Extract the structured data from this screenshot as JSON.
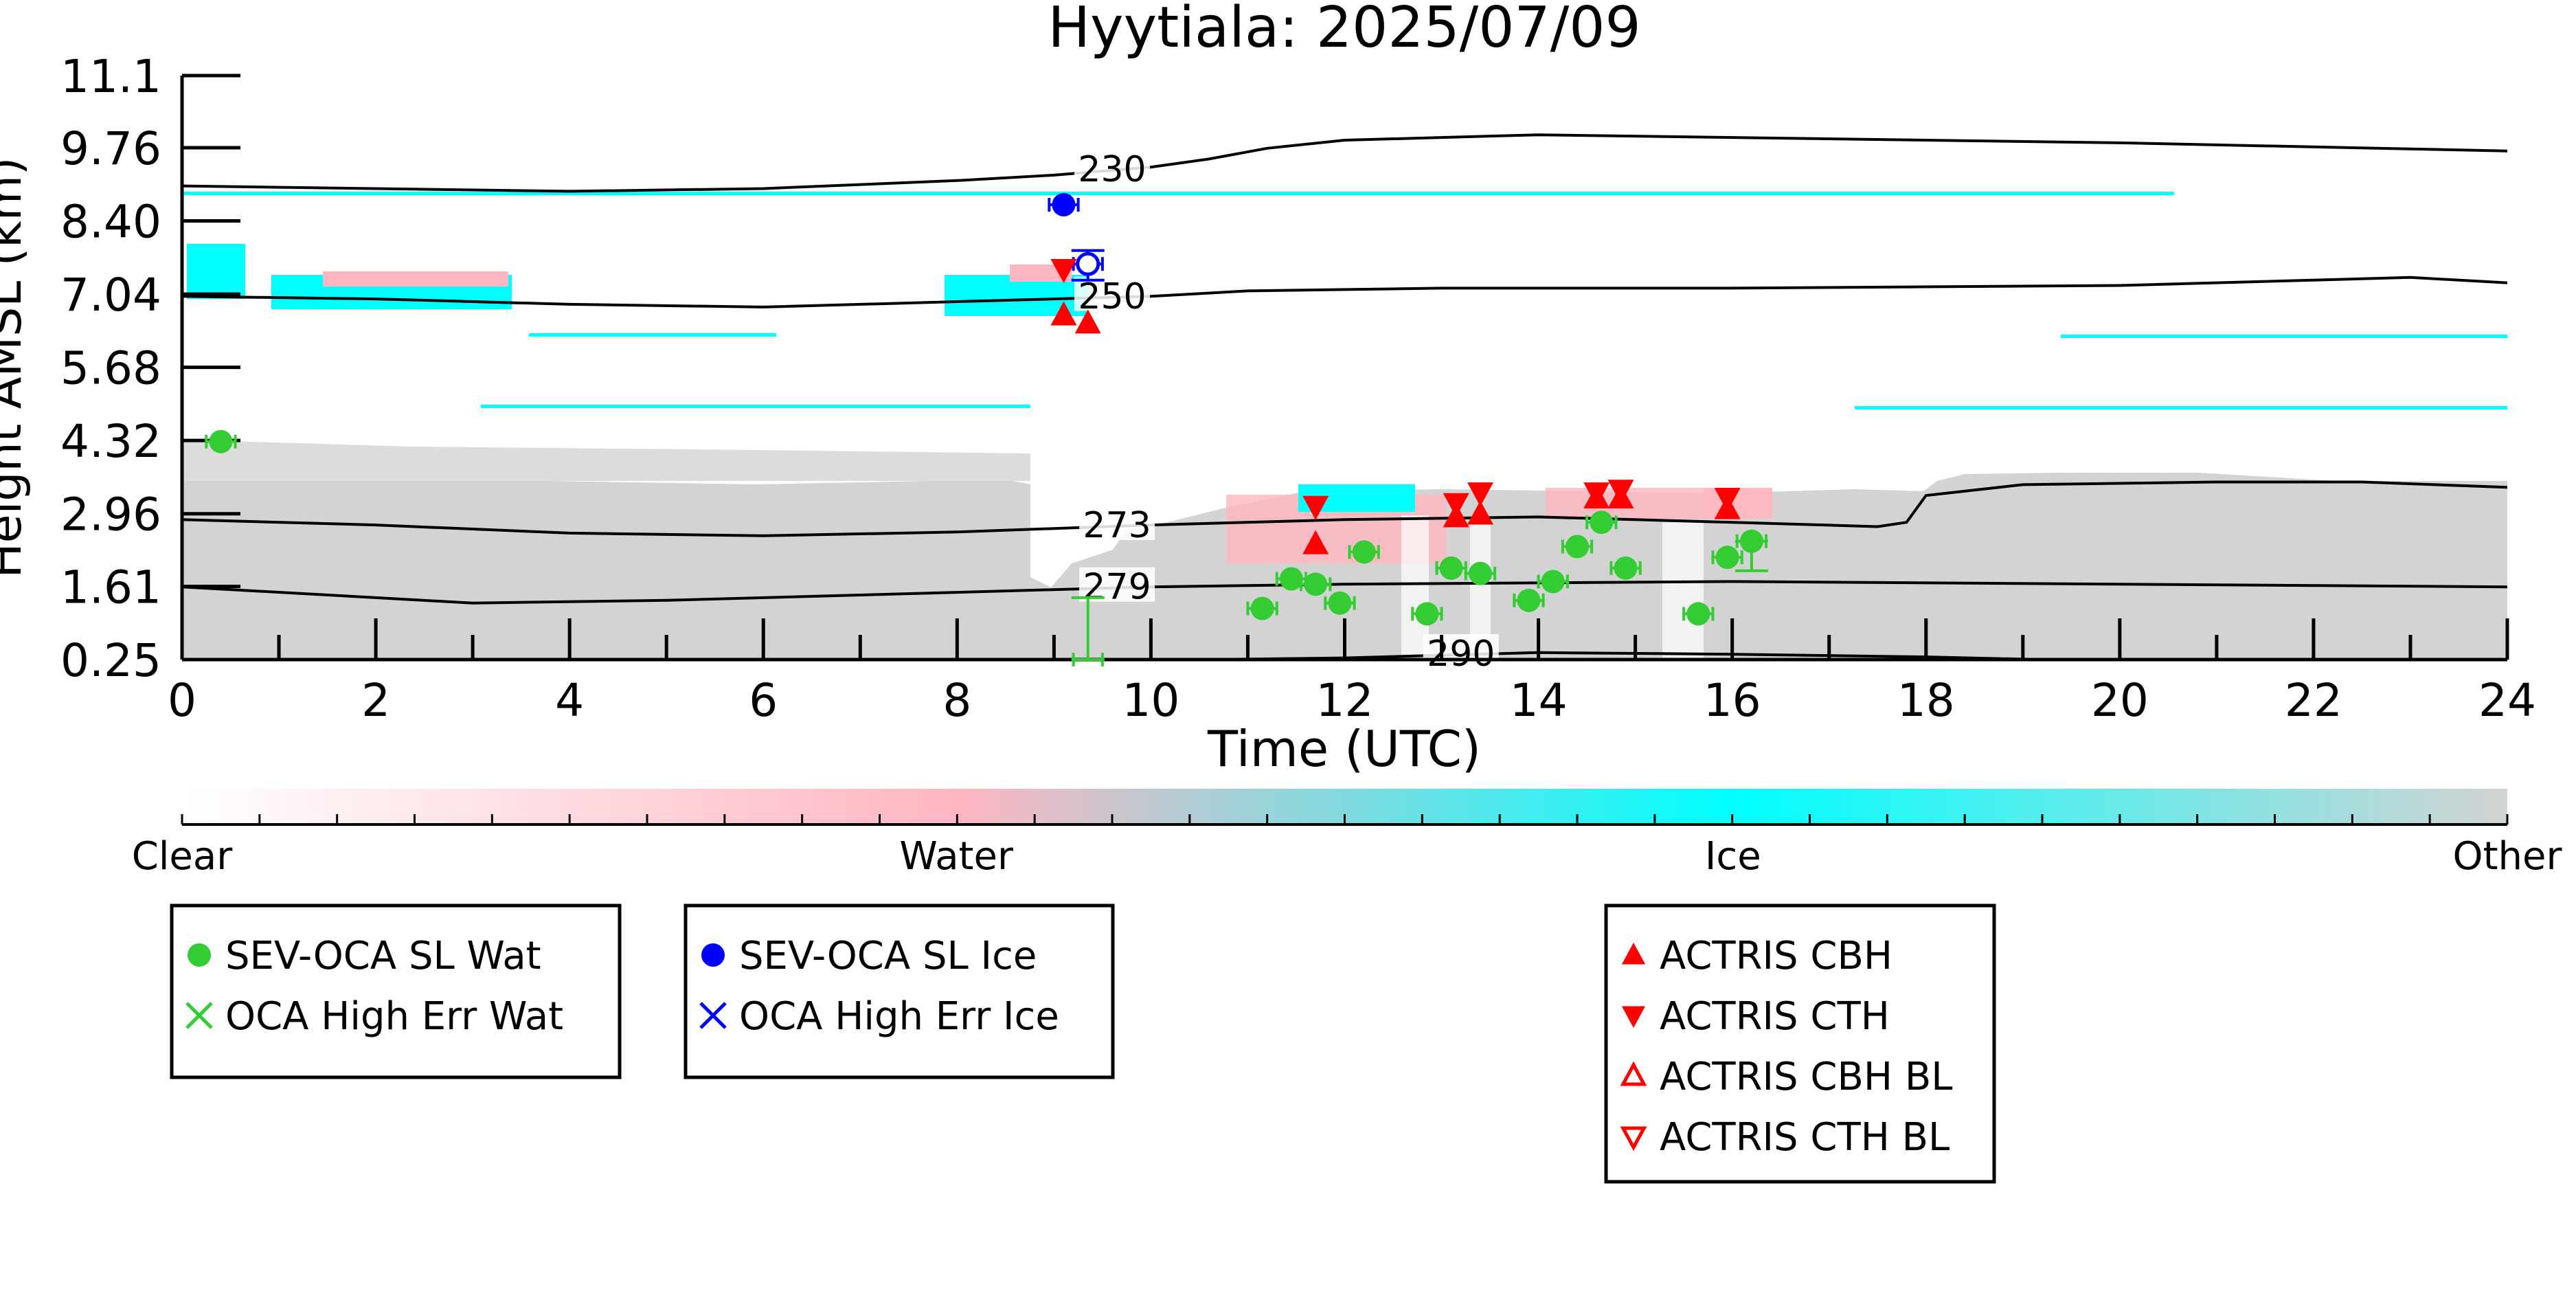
{
  "chart_data": {
    "type": "scatter",
    "title": "Hyytiala: 2025/07/09",
    "xlabel": "Time (UTC)",
    "ylabel": "Height AMSL (km)",
    "xlim": [
      0,
      24
    ],
    "ylim": [
      0.25,
      11.1
    ],
    "x_ticks": [
      0,
      2,
      4,
      6,
      8,
      10,
      12,
      14,
      16,
      18,
      20,
      22,
      24
    ],
    "y_ticks": [
      0.25,
      1.61,
      2.96,
      4.32,
      5.68,
      7.04,
      8.4,
      9.76,
      11.1
    ],
    "y_tick_labels": [
      "0.25",
      "1.61",
      "2.96",
      "4.32",
      "5.68",
      "7.04",
      "8.40",
      "9.76",
      "11.1"
    ],
    "colors": {
      "clear": "#ffffff",
      "water": "#ffb6c1",
      "ice": "#00ffff",
      "other": "#d3d3d3",
      "sev_wat": "#33cc33",
      "sev_ice": "#0000ff",
      "actris": "#ff0000"
    },
    "contours": [
      {
        "label": "230",
        "label_x": 9.6,
        "points": [
          [
            0,
            9.05
          ],
          [
            2,
            9.0
          ],
          [
            4,
            8.95
          ],
          [
            6,
            9.0
          ],
          [
            8,
            9.15
          ],
          [
            9,
            9.25
          ],
          [
            10,
            9.4
          ],
          [
            10.6,
            9.55
          ],
          [
            11.2,
            9.75
          ],
          [
            12,
            9.9
          ],
          [
            14,
            10.0
          ],
          [
            16,
            9.95
          ],
          [
            20,
            9.85
          ],
          [
            24,
            9.7
          ]
        ]
      },
      {
        "label": "250",
        "label_x": 9.6,
        "points": [
          [
            0,
            7.0
          ],
          [
            2,
            6.95
          ],
          [
            4,
            6.85
          ],
          [
            6,
            6.8
          ],
          [
            8,
            6.9
          ],
          [
            10,
            7.0
          ],
          [
            11,
            7.1
          ],
          [
            13,
            7.15
          ],
          [
            16,
            7.15
          ],
          [
            20,
            7.2
          ],
          [
            23,
            7.35
          ],
          [
            24,
            7.25
          ]
        ]
      },
      {
        "label": "273",
        "label_x": 9.65,
        "points": [
          [
            0,
            2.85
          ],
          [
            2,
            2.75
          ],
          [
            4,
            2.6
          ],
          [
            6,
            2.55
          ],
          [
            8,
            2.62
          ],
          [
            10,
            2.75
          ],
          [
            12,
            2.85
          ],
          [
            14,
            2.9
          ],
          [
            16,
            2.8
          ],
          [
            17.5,
            2.72
          ],
          [
            17.8,
            2.8
          ],
          [
            18.0,
            3.3
          ],
          [
            19,
            3.5
          ],
          [
            21,
            3.55
          ],
          [
            22.5,
            3.55
          ],
          [
            24,
            3.45
          ]
        ]
      },
      {
        "label": "279",
        "label_x": 9.65,
        "points": [
          [
            0,
            1.6
          ],
          [
            2,
            1.4
          ],
          [
            3,
            1.3
          ],
          [
            5,
            1.35
          ],
          [
            8,
            1.5
          ],
          [
            10,
            1.6
          ],
          [
            12,
            1.65
          ],
          [
            16,
            1.7
          ],
          [
            20,
            1.65
          ],
          [
            24,
            1.6
          ]
        ]
      },
      {
        "label": "290",
        "label_x": 13.2,
        "points": [
          [
            10.6,
            0.25
          ],
          [
            12,
            0.28
          ],
          [
            14,
            0.38
          ],
          [
            16,
            0.35
          ],
          [
            18,
            0.3
          ],
          [
            19.2,
            0.25
          ]
        ]
      }
    ],
    "sev_oca_water": [
      {
        "x": 0.4,
        "y": 4.3,
        "xerr": 0.15
      },
      {
        "x": 9.35,
        "y": 0.25,
        "xerr": 0.15,
        "yerr_high": 1.15
      },
      {
        "x": 11.15,
        "y": 1.2,
        "xerr": 0.15
      },
      {
        "x": 11.45,
        "y": 1.75,
        "xerr": 0.15
      },
      {
        "x": 11.7,
        "y": 1.65,
        "xerr": 0.15
      },
      {
        "x": 11.95,
        "y": 1.3,
        "xerr": 0.15
      },
      {
        "x": 12.2,
        "y": 2.25,
        "xerr": 0.15
      },
      {
        "x": 12.85,
        "y": 1.1,
        "xerr": 0.15
      },
      {
        "x": 13.1,
        "y": 1.95,
        "xerr": 0.15
      },
      {
        "x": 13.4,
        "y": 1.85,
        "xerr": 0.15
      },
      {
        "x": 13.9,
        "y": 1.35,
        "xerr": 0.15
      },
      {
        "x": 14.15,
        "y": 1.7,
        "xerr": 0.15
      },
      {
        "x": 14.4,
        "y": 2.35,
        "xerr": 0.15
      },
      {
        "x": 14.65,
        "y": 2.8,
        "xerr": 0.15
      },
      {
        "x": 14.9,
        "y": 1.95,
        "xerr": 0.15
      },
      {
        "x": 15.65,
        "y": 1.1,
        "xerr": 0.15
      },
      {
        "x": 15.95,
        "y": 2.15,
        "xerr": 0.15
      },
      {
        "x": 16.2,
        "y": 2.45,
        "xerr": 0.15,
        "yerr_low": 0.55
      }
    ],
    "sev_oca_ice": [
      {
        "x": 9.1,
        "y": 8.7,
        "xerr": 0.15
      }
    ],
    "oca_high_err_ice": [
      {
        "x": 9.35,
        "y": 7.6,
        "xerr": 0.15,
        "yerr_low": 0.3,
        "yerr_high": 0.25
      }
    ],
    "actris_cbh": [
      {
        "x": 9.1,
        "y": 6.65
      },
      {
        "x": 9.35,
        "y": 6.5
      },
      {
        "x": 11.7,
        "y": 2.4
      },
      {
        "x": 13.15,
        "y": 2.9
      },
      {
        "x": 13.4,
        "y": 2.95
      },
      {
        "x": 14.6,
        "y": 3.25
      },
      {
        "x": 14.85,
        "y": 3.25
      },
      {
        "x": 15.95,
        "y": 3.05
      }
    ],
    "actris_cth": [
      {
        "x": 9.1,
        "y": 7.5
      },
      {
        "x": 11.7,
        "y": 3.1
      },
      {
        "x": 13.15,
        "y": 3.15
      },
      {
        "x": 13.4,
        "y": 3.35
      },
      {
        "x": 14.6,
        "y": 3.35
      },
      {
        "x": 14.85,
        "y": 3.4
      },
      {
        "x": 15.95,
        "y": 3.25
      }
    ],
    "colorbar": {
      "labels": [
        "Clear",
        "Water",
        "Ice",
        "Other"
      ],
      "stops": [
        0,
        0.333,
        0.667,
        1
      ]
    },
    "legends": [
      {
        "entries": [
          {
            "label": "SEV-OCA SL Wat",
            "marker": "dot",
            "color": "#33cc33"
          },
          {
            "label": "OCA High Err Wat",
            "marker": "x",
            "color": "#33cc33"
          }
        ]
      },
      {
        "entries": [
          {
            "label": "SEV-OCA SL Ice",
            "marker": "dot",
            "color": "#0000ff"
          },
          {
            "label": "OCA High Err Ice",
            "marker": "x",
            "color": "#0000ff"
          }
        ]
      },
      {
        "entries": [
          {
            "label": "ACTRIS CBH",
            "marker": "tri-up",
            "color": "#ff0000"
          },
          {
            "label": "ACTRIS CTH",
            "marker": "tri-down",
            "color": "#ff0000"
          },
          {
            "label": "ACTRIS CBH BL",
            "marker": "tri-up-open",
            "color": "#ff0000"
          },
          {
            "label": "ACTRIS CTH BL",
            "marker": "tri-down-open",
            "color": "#ff0000"
          }
        ]
      }
    ]
  }
}
